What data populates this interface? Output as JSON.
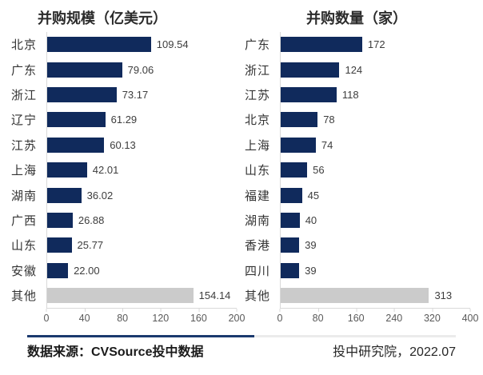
{
  "chart_data": [
    {
      "type": "bar",
      "orientation": "horizontal",
      "title": "并购规模（亿美元）",
      "categories": [
        "北京",
        "广东",
        "浙江",
        "辽宁",
        "江苏",
        "上海",
        "湖南",
        "广西",
        "山东",
        "安徽",
        "其他"
      ],
      "values": [
        109.54,
        79.06,
        73.17,
        61.29,
        60.13,
        42.01,
        36.02,
        26.88,
        25.77,
        22.0,
        154.14
      ],
      "value_labels": [
        "109.54",
        "79.06",
        "73.17",
        "61.29",
        "60.13",
        "42.01",
        "36.02",
        "26.88",
        "25.77",
        "22.00",
        "154.14"
      ],
      "other_index": 10,
      "xlim": [
        0,
        200
      ],
      "x_ticks": [
        "0",
        "40",
        "80",
        "120",
        "160",
        "200"
      ],
      "grid": false,
      "legend": false
    },
    {
      "type": "bar",
      "orientation": "horizontal",
      "title": "并购数量（家）",
      "categories": [
        "广东",
        "浙江",
        "江苏",
        "北京",
        "上海",
        "山东",
        "福建",
        "湖南",
        "香港",
        "四川",
        "其他"
      ],
      "values": [
        172,
        124,
        118,
        78,
        74,
        56,
        45,
        40,
        39,
        39,
        313
      ],
      "value_labels": [
        "172",
        "124",
        "118",
        "78",
        "74",
        "56",
        "45",
        "40",
        "39",
        "39",
        "313"
      ],
      "other_index": 10,
      "xlim": [
        0,
        400
      ],
      "x_ticks": [
        "0",
        "80",
        "160",
        "240",
        "320",
        "400"
      ],
      "grid": false,
      "legend": false
    }
  ],
  "footer": {
    "source": "数据来源：CVSource投中数据",
    "attribution": "投中研究院，2022.07"
  },
  "colors": {
    "bar": "#102a5c",
    "other_bar": "#cbcbcb",
    "axis_line": "#d9d9d9",
    "divider_left": "#1b3a6e",
    "divider_right": "#ebebeb"
  }
}
